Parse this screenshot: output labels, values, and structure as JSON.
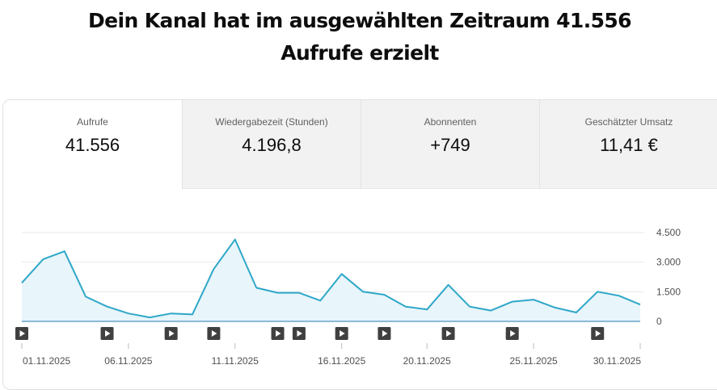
{
  "headline": "Dein Kanal hat im ausgewählten Zeitraum 41.556 Aufrufe erzielt",
  "tabs": [
    {
      "label": "Aufrufe",
      "value": "41.556",
      "active": true
    },
    {
      "label": "Wiedergabezeit (Stunden)",
      "value": "4.196,8",
      "active": false
    },
    {
      "label": "Abonnenten",
      "value": "+749",
      "active": false
    },
    {
      "label": "Geschätzter Umsatz",
      "value": "11,41 €",
      "active": false
    }
  ],
  "chart_data": {
    "type": "area",
    "x": [
      "01.11.2025",
      "02.11.2025",
      "03.11.2025",
      "04.11.2025",
      "05.11.2025",
      "06.11.2025",
      "07.11.2025",
      "08.11.2025",
      "09.11.2025",
      "10.11.2025",
      "11.11.2025",
      "12.11.2025",
      "13.11.2025",
      "14.11.2025",
      "15.11.2025",
      "16.11.2025",
      "17.11.2025",
      "18.11.2025",
      "19.11.2025",
      "20.11.2025",
      "21.11.2025",
      "22.11.2025",
      "23.11.2025",
      "24.11.2025",
      "25.11.2025",
      "26.11.2025",
      "27.11.2025",
      "28.11.2025",
      "29.11.2025",
      "30.11.2025"
    ],
    "values": [
      1950,
      3150,
      3550,
      1250,
      750,
      400,
      200,
      400,
      350,
      2650,
      4150,
      1700,
      1450,
      1450,
      1050,
      2400,
      1500,
      1350,
      750,
      600,
      1850,
      750,
      550,
      1000,
      1100,
      700,
      450,
      1500,
      1300,
      850
    ],
    "x_tick_labels": [
      "01.11.2025",
      "06.11.2025",
      "11.11.2025",
      "16.11.2025",
      "20.11.2025",
      "25.11.2025",
      "30.11.2025"
    ],
    "y_tick_labels": [
      "4.500",
      "3.000",
      "1.500",
      "0"
    ],
    "ylim": [
      0,
      4500
    ],
    "grid": true,
    "line_color": "#2ea7c8",
    "fill_color": "#e8f5fa",
    "video_markers": [
      "01.11.2025",
      "05.11.2025",
      "08.11.2025",
      "10.11.2025",
      "13.11.2025",
      "14.11.2025",
      "16.11.2025",
      "18.11.2025",
      "21.11.2025",
      "24.11.2025",
      "28.11.2025"
    ],
    "marker_icon": "play-icon"
  }
}
